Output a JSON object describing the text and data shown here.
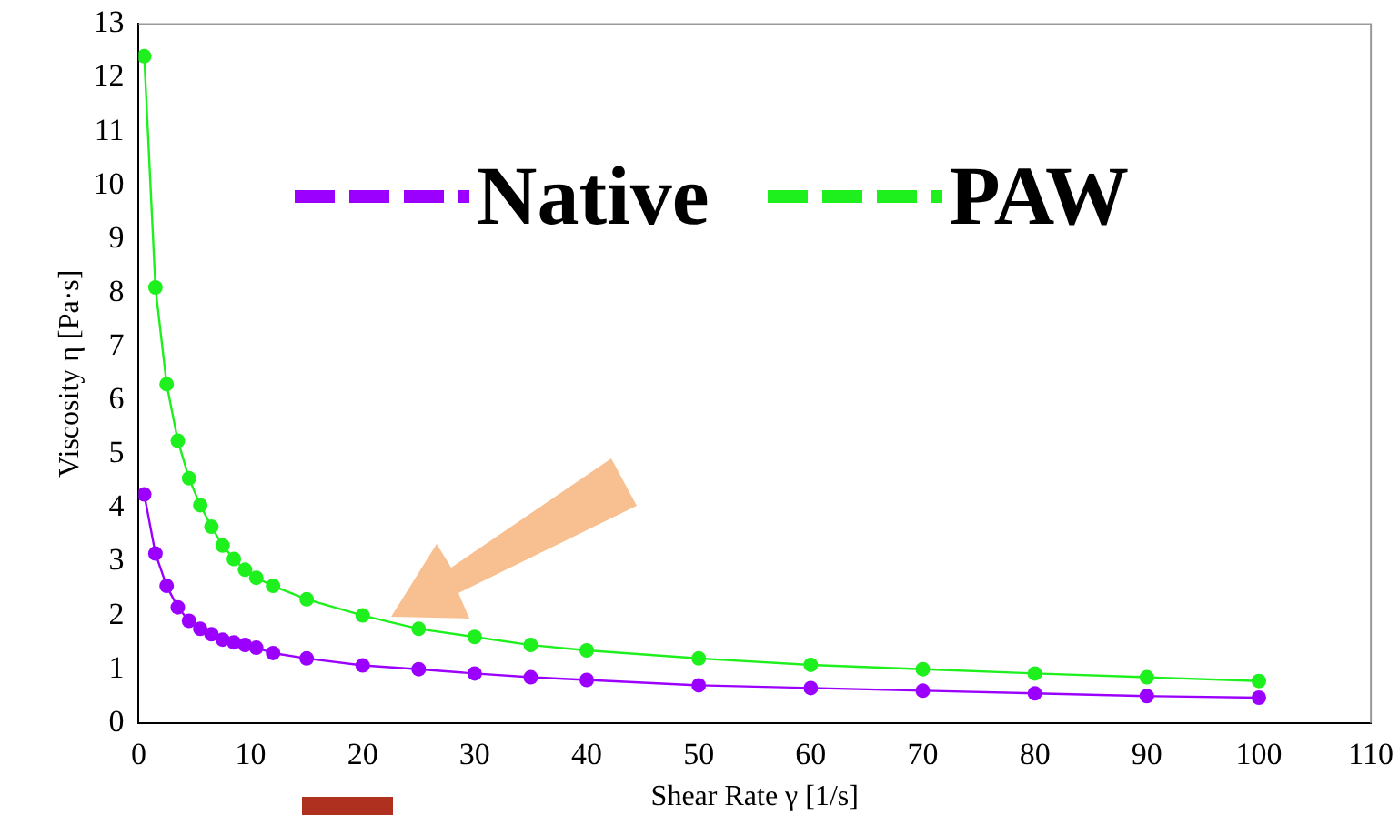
{
  "chart_data": {
    "type": "line",
    "xlabel": "Shear Rate γ [1/s]",
    "ylabel": "Viscosity η [Pa·s]",
    "xlim": [
      0,
      110
    ],
    "xticks": [
      0,
      10,
      20,
      30,
      40,
      50,
      60,
      70,
      80,
      90,
      100,
      110
    ],
    "ylim": [
      0,
      13
    ],
    "yticks": [
      0,
      1,
      2,
      3,
      4,
      5,
      6,
      7,
      8,
      9,
      10,
      11,
      12,
      13
    ],
    "grid": false,
    "legend": "top",
    "marker": "circle",
    "line_style": "solid",
    "series": [
      {
        "name": "Native",
        "color": "#9b00ff",
        "x": [
          0.5,
          1.5,
          2.5,
          3.5,
          4.5,
          5.5,
          6.5,
          7.5,
          8.5,
          9.5,
          10.5,
          12,
          15,
          20,
          25,
          30,
          35,
          40,
          50,
          60,
          70,
          80,
          90,
          100
        ],
        "values": [
          4.25,
          3.15,
          2.55,
          2.15,
          1.9,
          1.75,
          1.65,
          1.55,
          1.5,
          1.45,
          1.4,
          1.3,
          1.2,
          1.07,
          1.0,
          0.92,
          0.85,
          0.8,
          0.7,
          0.65,
          0.6,
          0.55,
          0.5,
          0.47
        ]
      },
      {
        "name": "PAW",
        "color": "#1ef01e",
        "x": [
          0.5,
          1.5,
          2.5,
          3.5,
          4.5,
          5.5,
          6.5,
          7.5,
          8.5,
          9.5,
          10.5,
          12,
          15,
          20,
          25,
          30,
          35,
          40,
          50,
          60,
          70,
          80,
          90,
          100
        ],
        "values": [
          12.4,
          8.1,
          6.3,
          5.25,
          4.55,
          4.05,
          3.65,
          3.3,
          3.05,
          2.85,
          2.7,
          2.55,
          2.3,
          2.0,
          1.75,
          1.6,
          1.45,
          1.35,
          1.2,
          1.08,
          1.0,
          0.92,
          0.85,
          0.78
        ]
      }
    ]
  }
}
